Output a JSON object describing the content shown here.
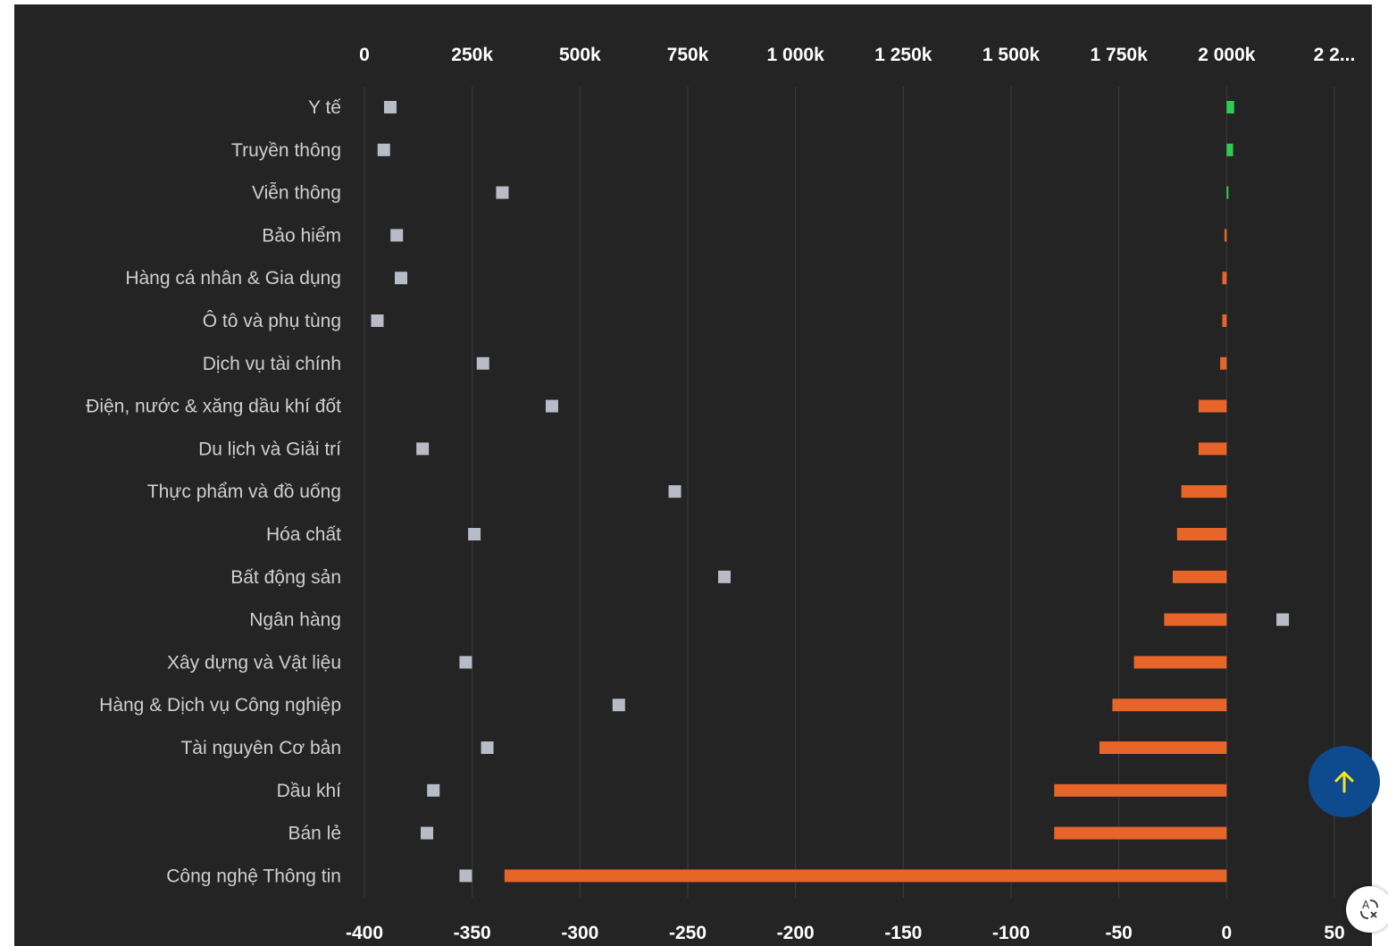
{
  "chart_data": {
    "type": "bar",
    "categories": [
      "Y tế",
      "Truyền thông",
      "Viễn thông",
      "Bảo hiểm",
      "Hàng cá nhân & Gia dụng",
      "Ô tô và phụ tùng",
      "Dịch vụ tài chính",
      "Điện, nước & xăng dầu khí đốt",
      "Du lịch và Giải trí",
      "Thực phẩm và đồ uống",
      "Hóa chất",
      "Bất động sản",
      "Ngân hàng",
      "Xây dựng và Vật liệu",
      "Hàng & Dịch vụ Công nghiệp",
      "Tài nguyên Cơ bản",
      "Dầu khí",
      "Bán lẻ",
      "Công nghệ Thông tin"
    ],
    "series": [
      {
        "axis": "bottom",
        "values": [
          3.5,
          3,
          0,
          -1,
          -2,
          -2,
          -3,
          -13,
          -13,
          -21,
          -23,
          -25,
          -29,
          -43,
          -53,
          -59,
          -80,
          -80,
          -335
        ],
        "color_positive": "#2ecc55",
        "color_negative": "#e8652a"
      },
      {
        "axis": "top",
        "values": [
          60000,
          45000,
          320000,
          75000,
          85000,
          30000,
          275000,
          435000,
          135000,
          720000,
          255000,
          835000,
          2130000,
          235000,
          590000,
          285000,
          160000,
          145000,
          235000
        ],
        "color": "#b8bcc8",
        "marker": "square"
      }
    ],
    "x_top_axis": {
      "range": [
        0,
        2250000
      ],
      "tick_labels": [
        "0",
        "250k",
        "500k",
        "750k",
        "1 000k",
        "1 250k",
        "1 500k",
        "1 750k",
        "2 000k",
        "2 2..."
      ]
    },
    "x_bottom_axis": {
      "range": [
        -400,
        50
      ],
      "tick_labels": [
        "-400",
        "-350",
        "-300",
        "-250",
        "-200",
        "-150",
        "-100",
        "-50",
        "0",
        "50"
      ]
    },
    "grid": true,
    "colors": {
      "background": "#242424",
      "grid": "#3d3d3d",
      "text": "#cfcfcf",
      "axis_text": "#ffffff"
    }
  },
  "scroll_top": {
    "icon": "arrow-up-icon",
    "color": "#0d4a8e",
    "icon_color": "#f5e61e"
  },
  "translate": {
    "icon": "translate-icon"
  }
}
